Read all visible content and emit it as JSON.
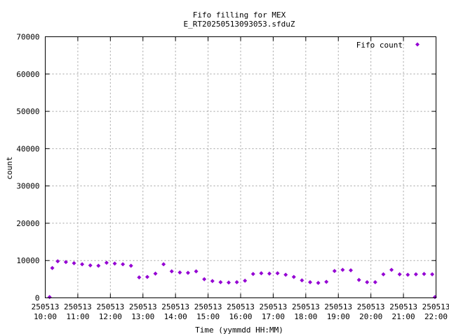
{
  "chart_data": {
    "type": "scatter",
    "title": "Fifo filling for MEX",
    "subtitle": "E_RT20250513093053.sfduZ",
    "xlabel": "Time (yymmdd HH:MM)",
    "ylabel": "count",
    "xlim": [
      "10:00",
      "22:00"
    ],
    "ylim": [
      0,
      70000
    ],
    "x_ticks": [
      {
        "date": "250513",
        "time": "10:00"
      },
      {
        "date": "250513",
        "time": "11:00"
      },
      {
        "date": "250513",
        "time": "12:00"
      },
      {
        "date": "250513",
        "time": "13:00"
      },
      {
        "date": "250513",
        "time": "14:00"
      },
      {
        "date": "250513",
        "time": "15:00"
      },
      {
        "date": "250513",
        "time": "16:00"
      },
      {
        "date": "250513",
        "time": "17:00"
      },
      {
        "date": "250513",
        "time": "18:00"
      },
      {
        "date": "250513",
        "time": "19:00"
      },
      {
        "date": "250513",
        "time": "20:00"
      },
      {
        "date": "250513",
        "time": "21:00"
      },
      {
        "date": "250513",
        "time": "22:00"
      }
    ],
    "y_ticks": [
      0,
      10000,
      20000,
      30000,
      40000,
      50000,
      60000,
      70000
    ],
    "grid": true,
    "legend_position": "top-right",
    "series": [
      {
        "name": "Fifo count",
        "color": "#9400d3",
        "marker": "diamond",
        "x": [
          "10:08",
          "10:13",
          "10:23",
          "10:38",
          "10:53",
          "11:08",
          "11:23",
          "11:38",
          "11:53",
          "12:08",
          "12:23",
          "12:38",
          "12:53",
          "13:08",
          "13:23",
          "13:38",
          "13:53",
          "14:08",
          "14:23",
          "14:38",
          "14:53",
          "15:08",
          "15:23",
          "15:38",
          "15:53",
          "16:08",
          "16:23",
          "16:38",
          "16:53",
          "17:08",
          "17:23",
          "17:38",
          "17:53",
          "18:08",
          "18:23",
          "18:38",
          "18:53",
          "19:08",
          "19:23",
          "19:38",
          "19:53",
          "20:08",
          "20:23",
          "20:38",
          "20:53",
          "21:08",
          "21:23",
          "21:38",
          "21:53",
          "21:58"
        ],
        "y": [
          200,
          8000,
          9800,
          9600,
          9300,
          9000,
          8700,
          8600,
          9400,
          9200,
          9000,
          8600,
          5500,
          5600,
          6500,
          9000,
          7100,
          6800,
          6700,
          7100,
          5000,
          4500,
          4200,
          4100,
          4200,
          4600,
          6400,
          6600,
          6500,
          6600,
          6200,
          5600,
          4700,
          4200,
          4000,
          4300,
          7200,
          7500,
          7400,
          4800,
          4200,
          4200,
          6300,
          7500,
          6300,
          6200,
          6300,
          6400,
          6300,
          200
        ]
      }
    ]
  }
}
